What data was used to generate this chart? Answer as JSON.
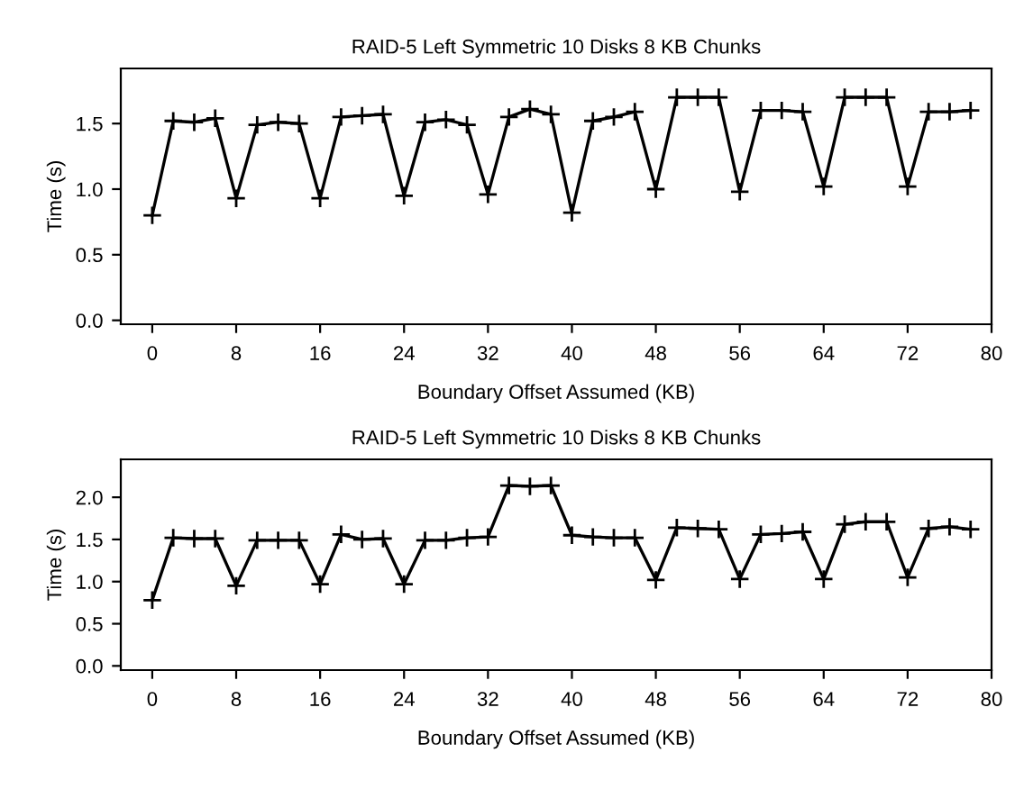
{
  "chart_data": [
    {
      "type": "line",
      "title": "RAID-5 Left Symmetric 10 Disks 8 KB Chunks",
      "xlabel": "Boundary Offset Assumed (KB)",
      "ylabel": "Time (s)",
      "marker": "cross",
      "line_style": "solid",
      "grid": false,
      "x": [
        0,
        2,
        4,
        6,
        8,
        10,
        12,
        14,
        16,
        18,
        20,
        22,
        24,
        26,
        28,
        30,
        32,
        34,
        36,
        38,
        40,
        42,
        44,
        46,
        48,
        50,
        52,
        54,
        56,
        58,
        60,
        62,
        64,
        66,
        68,
        70,
        72,
        74,
        76,
        78
      ],
      "series": [
        {
          "color": "#000000",
          "values": [
            0.8,
            1.52,
            1.51,
            1.54,
            0.93,
            1.49,
            1.51,
            1.5,
            0.93,
            1.55,
            1.56,
            1.57,
            0.95,
            1.51,
            1.53,
            1.49,
            0.96,
            1.55,
            1.61,
            1.57,
            0.82,
            1.52,
            1.55,
            1.59,
            1.0,
            1.7,
            1.7,
            1.7,
            0.98,
            1.6,
            1.6,
            1.59,
            1.02,
            1.7,
            1.7,
            1.7,
            1.02,
            1.59,
            1.59,
            1.6
          ]
        }
      ],
      "xlim": [
        -3,
        80
      ],
      "xticks": [
        0,
        8,
        16,
        24,
        32,
        40,
        48,
        56,
        64,
        72,
        80
      ],
      "ylim": [
        -0.03,
        1.92
      ],
      "yticks": [
        {
          "value": 0,
          "label": "0.0"
        },
        {
          "value": 0.5,
          "label": "0.5"
        },
        {
          "value": 1,
          "label": "1.0"
        },
        {
          "value": 1.5,
          "label": "1.5"
        }
      ]
    },
    {
      "type": "line",
      "title": "RAID-5 Left Symmetric 10 Disks 8 KB Chunks",
      "xlabel": "Boundary Offset Assumed (KB)",
      "ylabel": "Time (s)",
      "marker": "cross",
      "line_style": "solid",
      "grid": false,
      "x": [
        0,
        2,
        4,
        6,
        8,
        10,
        12,
        14,
        16,
        18,
        20,
        22,
        24,
        26,
        28,
        30,
        32,
        34,
        36,
        38,
        40,
        42,
        44,
        46,
        48,
        50,
        52,
        54,
        56,
        58,
        60,
        62,
        64,
        66,
        68,
        70,
        72,
        74,
        76,
        78
      ],
      "series": [
        {
          "color": "#000000",
          "values": [
            0.78,
            1.52,
            1.51,
            1.51,
            0.95,
            1.49,
            1.49,
            1.49,
            0.97,
            1.56,
            1.5,
            1.51,
            0.97,
            1.49,
            1.49,
            1.52,
            1.53,
            2.14,
            2.13,
            2.14,
            1.55,
            1.53,
            1.52,
            1.52,
            1.02,
            1.64,
            1.63,
            1.62,
            1.03,
            1.56,
            1.57,
            1.59,
            1.03,
            1.68,
            1.71,
            1.71,
            1.05,
            1.63,
            1.65,
            1.62
          ]
        }
      ],
      "xlim": [
        -3,
        80
      ],
      "xticks": [
        0,
        8,
        16,
        24,
        32,
        40,
        48,
        56,
        64,
        72,
        80
      ],
      "ylim": [
        -0.05,
        2.45
      ],
      "yticks": [
        {
          "value": 0,
          "label": "0.0"
        },
        {
          "value": 0.5,
          "label": "0.5"
        },
        {
          "value": 1,
          "label": "1.0"
        },
        {
          "value": 1.5,
          "label": "1.5"
        },
        {
          "value": 2,
          "label": "2.0"
        }
      ]
    }
  ]
}
